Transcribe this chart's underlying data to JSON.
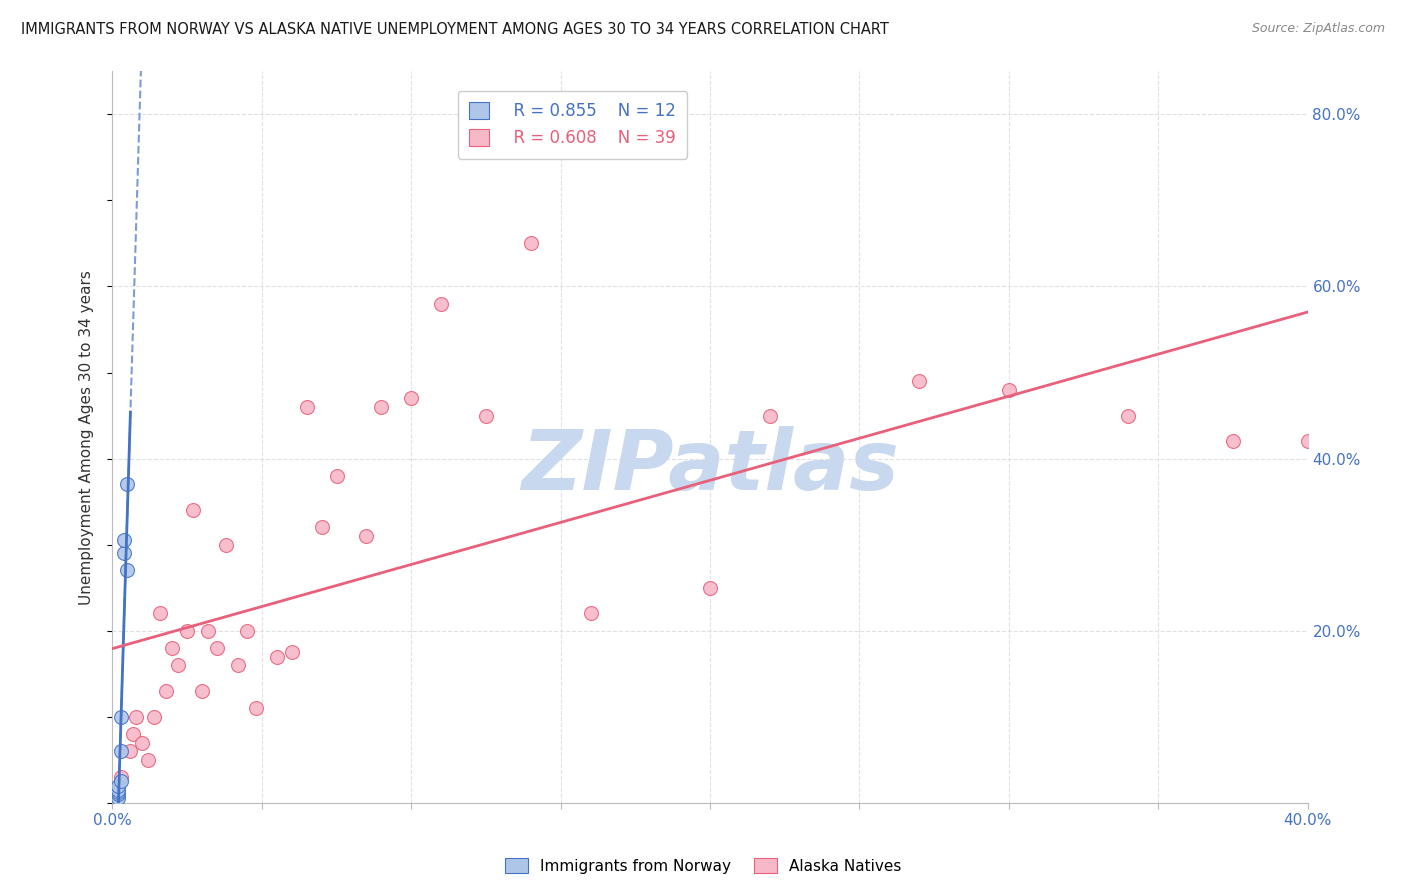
{
  "title": "IMMIGRANTS FROM NORWAY VS ALASKA NATIVE UNEMPLOYMENT AMONG AGES 30 TO 34 YEARS CORRELATION CHART",
  "source": "Source: ZipAtlas.com",
  "ylabel": "Unemployment Among Ages 30 to 34 years",
  "xlim": [
    0.0,
    0.4
  ],
  "ylim": [
    0.0,
    0.85
  ],
  "x_tick_positions": [
    0.0,
    0.05,
    0.1,
    0.15,
    0.2,
    0.25,
    0.3,
    0.35,
    0.4
  ],
  "x_tick_labels": [
    "0.0%",
    "",
    "",
    "",
    "",
    "",
    "",
    "",
    "40.0%"
  ],
  "y_tick_right_positions": [
    0.0,
    0.2,
    0.4,
    0.6,
    0.8
  ],
  "y_tick_right_labels": [
    "",
    "20.0%",
    "40.0%",
    "60.0%",
    "80.0%"
  ],
  "norway_fill_color": "#aec6e8",
  "alaska_fill_color": "#f7b8c8",
  "norway_edge_color": "#4472c4",
  "alaska_edge_color": "#e8607a",
  "norway_line_color": "#4472c4",
  "alaska_line_color": "#e8607a",
  "watermark": "ZIPatlas",
  "watermark_color": "#c8d8ee",
  "legend_R_norway": "R = 0.855",
  "legend_N_norway": "N = 12",
  "legend_R_alaska": "R = 0.608",
  "legend_N_alaska": "N = 39",
  "norway_scatter_x": [
    0.002,
    0.002,
    0.002,
    0.002,
    0.002,
    0.003,
    0.003,
    0.003,
    0.004,
    0.004,
    0.005,
    0.005
  ],
  "norway_scatter_y": [
    0.005,
    0.01,
    0.012,
    0.015,
    0.02,
    0.025,
    0.06,
    0.1,
    0.29,
    0.305,
    0.27,
    0.37
  ],
  "alaska_scatter_x": [
    0.003,
    0.006,
    0.007,
    0.008,
    0.01,
    0.012,
    0.014,
    0.016,
    0.018,
    0.02,
    0.022,
    0.025,
    0.027,
    0.03,
    0.032,
    0.035,
    0.038,
    0.042,
    0.045,
    0.048,
    0.055,
    0.06,
    0.065,
    0.07,
    0.075,
    0.085,
    0.09,
    0.1,
    0.11,
    0.125,
    0.14,
    0.16,
    0.2,
    0.22,
    0.27,
    0.3,
    0.34,
    0.375,
    0.4
  ],
  "alaska_scatter_y": [
    0.03,
    0.06,
    0.08,
    0.1,
    0.07,
    0.05,
    0.1,
    0.22,
    0.13,
    0.18,
    0.16,
    0.2,
    0.34,
    0.13,
    0.2,
    0.18,
    0.3,
    0.16,
    0.2,
    0.11,
    0.17,
    0.175,
    0.46,
    0.32,
    0.38,
    0.31,
    0.46,
    0.47,
    0.58,
    0.45,
    0.65,
    0.22,
    0.25,
    0.45,
    0.49,
    0.48,
    0.45,
    0.42,
    0.42
  ],
  "background_color": "#ffffff",
  "grid_color": "#e0e0e0",
  "marker_size": 100
}
